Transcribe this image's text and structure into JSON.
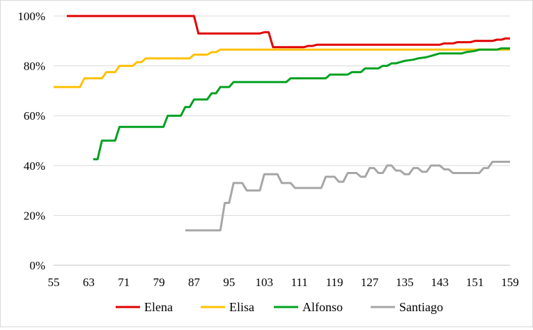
{
  "chart_data": {
    "type": "line",
    "title": "",
    "xlabel": "",
    "ylabel": "",
    "xlim": [
      55,
      159
    ],
    "ylim": [
      0,
      100
    ],
    "x_ticks": [
      55,
      63,
      71,
      79,
      87,
      95,
      103,
      111,
      119,
      127,
      135,
      143,
      151,
      159
    ],
    "x_tick_labels": [
      "55",
      "63",
      "71",
      "79",
      "87",
      "95",
      "103",
      "111",
      "119",
      "127",
      "135",
      "143",
      "151",
      "159"
    ],
    "y_ticks": [
      0,
      20,
      40,
      60,
      80,
      100
    ],
    "y_tick_labels": [
      "0%",
      "20%",
      "40%",
      "60%",
      "80%",
      "100%"
    ],
    "grid": "horizontal",
    "legend": "bottom",
    "series": [
      {
        "name": "Elena",
        "color": "#e00000",
        "points": [
          [
            58,
            100
          ],
          [
            87,
            100
          ],
          [
            88,
            93
          ],
          [
            102,
            93
          ],
          [
            103,
            93.5
          ],
          [
            104,
            93.5
          ],
          [
            105,
            87.5
          ],
          [
            112,
            87.5
          ],
          [
            113,
            88
          ],
          [
            114,
            88
          ],
          [
            115,
            88.5
          ],
          [
            143,
            88.5
          ],
          [
            144,
            89
          ],
          [
            146,
            89
          ],
          [
            147,
            89.5
          ],
          [
            150,
            89.5
          ],
          [
            151,
            90
          ],
          [
            155,
            90
          ],
          [
            156,
            90.5
          ],
          [
            157,
            90.5
          ],
          [
            158,
            91
          ],
          [
            159,
            91
          ]
        ]
      },
      {
        "name": "Elisa",
        "color": "#ffc000",
        "points": [
          [
            55,
            71.5
          ],
          [
            61,
            71.5
          ],
          [
            62,
            75
          ],
          [
            66,
            75
          ],
          [
            67,
            77.5
          ],
          [
            69,
            77.5
          ],
          [
            70,
            80
          ],
          [
            73,
            80
          ],
          [
            74,
            81.5
          ],
          [
            75,
            81.5
          ],
          [
            76,
            83
          ],
          [
            86,
            83
          ],
          [
            87,
            84.5
          ],
          [
            90,
            84.5
          ],
          [
            91,
            85.5
          ],
          [
            92,
            85.5
          ],
          [
            93,
            86.5
          ],
          [
            159,
            86.5
          ]
        ]
      },
      {
        "name": "Alfonso",
        "color": "#00a020",
        "points": [
          [
            64,
            42.5
          ],
          [
            65,
            42.5
          ],
          [
            66,
            50
          ],
          [
            69,
            50
          ],
          [
            70,
            55.5
          ],
          [
            80,
            55.5
          ],
          [
            81,
            60
          ],
          [
            84,
            60
          ],
          [
            85,
            63.5
          ],
          [
            86,
            63.5
          ],
          [
            87,
            66.5
          ],
          [
            90,
            66.5
          ],
          [
            91,
            69
          ],
          [
            92,
            69
          ],
          [
            93,
            71.5
          ],
          [
            95,
            71.5
          ],
          [
            96,
            73.5
          ],
          [
            108,
            73.5
          ],
          [
            109,
            75
          ],
          [
            117,
            75
          ],
          [
            118,
            76.5
          ],
          [
            122,
            76.5
          ],
          [
            123,
            77.5
          ],
          [
            125,
            77.5
          ],
          [
            126,
            79
          ],
          [
            129,
            79
          ],
          [
            130,
            80
          ],
          [
            131,
            80
          ],
          [
            132,
            81
          ],
          [
            133,
            81
          ],
          [
            134,
            81.5
          ],
          [
            135,
            82
          ],
          [
            137,
            82.5
          ],
          [
            138,
            83
          ],
          [
            140,
            83.5
          ],
          [
            141,
            84
          ],
          [
            142,
            84.5
          ],
          [
            143,
            85
          ],
          [
            148,
            85
          ],
          [
            149,
            85.5
          ],
          [
            151,
            86
          ],
          [
            152,
            86.5
          ],
          [
            156,
            86.5
          ],
          [
            157,
            87
          ],
          [
            159,
            87
          ]
        ]
      },
      {
        "name": "Santiago",
        "color": "#a6a6a6",
        "points": [
          [
            85,
            14
          ],
          [
            93,
            14
          ],
          [
            94,
            25
          ],
          [
            95,
            25
          ],
          [
            96,
            33
          ],
          [
            98,
            33
          ],
          [
            99,
            30
          ],
          [
            102,
            30
          ],
          [
            103,
            36.5
          ],
          [
            106,
            36.5
          ],
          [
            107,
            33
          ],
          [
            109,
            33
          ],
          [
            110,
            31
          ],
          [
            116,
            31
          ],
          [
            117,
            35.5
          ],
          [
            119,
            35.5
          ],
          [
            120,
            33.5
          ],
          [
            121,
            33.5
          ],
          [
            122,
            37
          ],
          [
            124,
            37
          ],
          [
            125,
            35.5
          ],
          [
            126,
            35.5
          ],
          [
            127,
            39
          ],
          [
            128,
            39
          ],
          [
            129,
            37
          ],
          [
            130,
            37
          ],
          [
            131,
            40
          ],
          [
            132,
            40
          ],
          [
            133,
            38
          ],
          [
            134,
            38
          ],
          [
            135,
            36.5
          ],
          [
            136,
            36.5
          ],
          [
            137,
            39
          ],
          [
            138,
            39
          ],
          [
            139,
            37.5
          ],
          [
            140,
            37.5
          ],
          [
            141,
            40
          ],
          [
            143,
            40
          ],
          [
            144,
            38.5
          ],
          [
            145,
            38.5
          ],
          [
            146,
            37
          ],
          [
            152,
            37
          ],
          [
            153,
            39
          ],
          [
            154,
            39
          ],
          [
            155,
            41.5
          ],
          [
            159,
            41.5
          ]
        ]
      }
    ]
  }
}
